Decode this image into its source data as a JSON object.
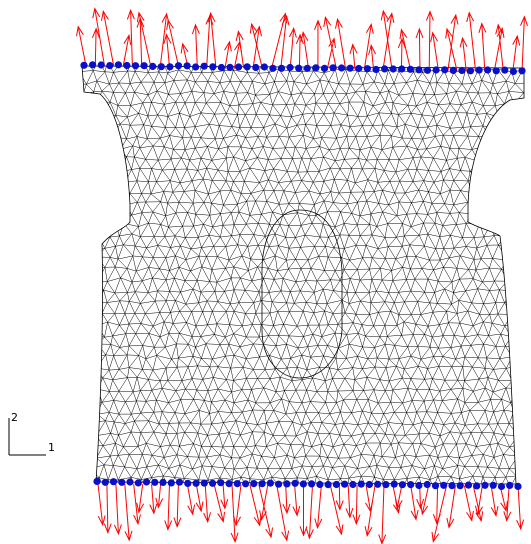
{
  "figure": {
    "axis_triad": {
      "vertical_label": "2",
      "horizontal_label": "1"
    }
  },
  "colors": {
    "mesh": "#000000",
    "node": "#0a10c8",
    "arrow": "#ff0000",
    "background": "#ffffff"
  }
}
